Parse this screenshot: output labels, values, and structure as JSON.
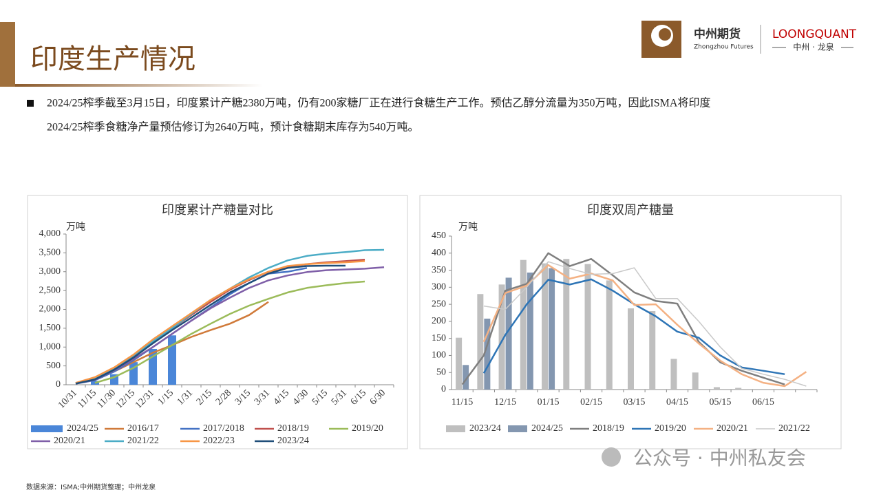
{
  "header": {
    "title": "印度生产情况"
  },
  "bullet": {
    "lines": [
      "2024/25榨季截至3月15日，印度累计产糖2380万吨，仍有200家糖厂正在进行食糖生产工作。预估乙醇分流量为350万吨，因此ISMA将印度",
      "2024/25榨季食糖净产量预估修订为2640万吨，预计食糖期末库存为540万吨。"
    ]
  },
  "logo": {
    "cn": "中州期货",
    "en": "Zhongzhou Futures",
    "brand": "LOONGQUANT",
    "brand_cn": "中州 · 龙泉"
  },
  "source": "数据来源：ISMA;中州期货整理；中州龙泉",
  "watermark": "公众号 · 中州私友会",
  "chart_data": [
    {
      "type": "combo",
      "title": "印度累计产糖量对比",
      "y_label": "万吨",
      "legend": "bottom",
      "grid": false,
      "categories": [
        "10/31",
        "11/15",
        "11/30",
        "12/15",
        "12/31",
        "1/15",
        "1/31",
        "2/15",
        "2/28",
        "3/15",
        "3/31",
        "4/15",
        "4/30",
        "5/15",
        "5/31",
        "6/15",
        "6/30"
      ],
      "ylim": [
        0,
        4000
      ],
      "yticks": [
        0,
        500,
        {
          "value": 1000,
          "label": "1,000"
        },
        {
          "value": 1500,
          "label": "1,500"
        },
        {
          "value": 2000,
          "label": "2,000"
        },
        {
          "value": 2500,
          "label": "2,500"
        },
        {
          "value": 3000,
          "label": "3,000"
        },
        {
          "value": 3500,
          "label": "3,500"
        },
        {
          "value": 4000,
          "label": "4,000"
        }
      ],
      "series": [
        {
          "name": "2024/25",
          "type": "bar",
          "color": "#4a86d8",
          "values": [
            null,
            100,
            280,
            600,
            950,
            1310,
            null,
            null,
            null,
            null,
            null,
            null,
            null,
            null,
            null,
            null,
            null
          ]
        },
        {
          "name": "2016/17",
          "type": "line",
          "color": "#d07a3a",
          "values": [
            50,
            150,
            350,
            600,
            850,
            1050,
            1270,
            1450,
            1620,
            1850,
            2200,
            null,
            null,
            null,
            null,
            null,
            null
          ]
        },
        {
          "name": "2017/2018",
          "type": "line",
          "color": "#4472c4",
          "values": [
            30,
            120,
            350,
            650,
            1000,
            1350,
            1700,
            2050,
            2400,
            2700,
            2950,
            3000,
            3100,
            null,
            null,
            null,
            null
          ]
        },
        {
          "name": "2018/19",
          "type": "line",
          "color": "#c0504d",
          "values": [
            40,
            170,
            420,
            750,
            1100,
            1500,
            1850,
            2200,
            2520,
            2780,
            3000,
            3130,
            3200,
            3250,
            3280,
            3320,
            null
          ]
        },
        {
          "name": "2019/20",
          "type": "line",
          "color": "#9bbb59",
          "values": [
            null,
            50,
            200,
            450,
            750,
            1050,
            1350,
            1620,
            1880,
            2100,
            2280,
            2450,
            2570,
            2640,
            2700,
            2740,
            null
          ]
        },
        {
          "name": "2020/21",
          "type": "line",
          "color": "#7f5fa8",
          "values": [
            30,
            130,
            380,
            680,
            1000,
            1350,
            1700,
            2030,
            2310,
            2570,
            2770,
            2900,
            2990,
            3040,
            3060,
            3080,
            3120
          ]
        },
        {
          "name": "2021/22",
          "type": "line",
          "color": "#4bacc6",
          "values": [
            40,
            180,
            450,
            780,
            1150,
            1500,
            1880,
            2250,
            2550,
            2850,
            3100,
            3300,
            3420,
            3480,
            3520,
            3570,
            3580
          ]
        },
        {
          "name": "2022/23",
          "type": "line",
          "color": "#f79646",
          "values": [
            50,
            200,
            460,
            800,
            1200,
            1550,
            1900,
            2250,
            2550,
            2800,
            3000,
            3150,
            3200,
            3230,
            3250,
            3280,
            null
          ]
        },
        {
          "name": "2023/24",
          "type": "line",
          "color": "#1f4e79",
          "values": [
            30,
            140,
            400,
            720,
            1100,
            1450,
            1780,
            2120,
            2450,
            2700,
            2950,
            3100,
            3150,
            3160,
            3160,
            null,
            null
          ]
        }
      ]
    },
    {
      "type": "combo",
      "title": "印度双周产糖量",
      "y_label": "万吨",
      "legend": "bottom",
      "grid": false,
      "categories": [
        "11/15",
        null,
        "12/15",
        null,
        "01/15",
        null,
        "02/15",
        null,
        "03/15",
        null,
        "04/15",
        null,
        "05/15",
        null,
        "06/15",
        null,
        null
      ],
      "ylim": [
        0,
        450
      ],
      "yticks": [
        0,
        50,
        100,
        150,
        200,
        250,
        300,
        350,
        400,
        450
      ],
      "series": [
        {
          "name": "2023/24",
          "type": "bar",
          "color": "#bfbfbf",
          "values": [
            152,
            280,
            308,
            380,
            370,
            383,
            368,
            320,
            238,
            230,
            90,
            50,
            7,
            5,
            null,
            null,
            null
          ]
        },
        {
          "name": "2024/25",
          "type": "bar",
          "color": "#8497b0",
          "values": [
            72,
            208,
            328,
            343,
            356,
            null,
            null,
            null,
            null,
            null,
            null,
            null,
            null,
            null,
            null,
            null,
            null
          ]
        },
        {
          "name": "2018/19",
          "type": "line",
          "color": "#7f7f7f",
          "values": [
            15,
            100,
            290,
            310,
            400,
            362,
            383,
            335,
            285,
            260,
            252,
            140,
            80,
            55,
            35,
            15,
            null
          ]
        },
        {
          "name": "2019/20",
          "type": "line",
          "color": "#2e75b6",
          "values": [
            null,
            48,
            160,
            250,
            322,
            308,
            323,
            290,
            250,
            215,
            170,
            152,
            100,
            65,
            55,
            45,
            null
          ]
        },
        {
          "name": "2020/21",
          "type": "line",
          "color": "#f4b183",
          "values": [
            null,
            140,
            283,
            305,
            365,
            325,
            340,
            320,
            248,
            250,
            190,
            135,
            85,
            45,
            20,
            10,
            52
          ]
        },
        {
          "name": "2021/22",
          "type": "line",
          "color": "#c9c9c9",
          "thin": true,
          "values": [
            null,
            245,
            235,
            300,
            375,
            355,
            338,
            340,
            357,
            267,
            267,
            200,
            125,
            62,
            45,
            30,
            10
          ]
        }
      ]
    }
  ]
}
